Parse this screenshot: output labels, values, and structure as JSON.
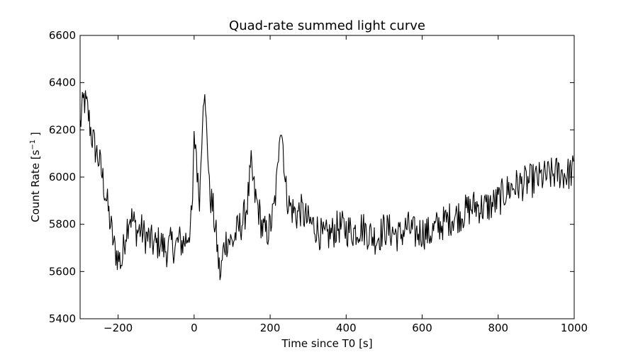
{
  "chart_data": {
    "type": "line",
    "title": "Quad-rate summed light curve",
    "xlabel": "Time since T0 [s]",
    "ylabel": "Count Rate [s",
    "ylabel_sup": "−1",
    "ylabel_suffix": " ]",
    "xlim": [
      -300,
      1000
    ],
    "ylim": [
      5400,
      6600
    ],
    "xticks": [
      -200,
      0,
      200,
      400,
      600,
      800,
      1000
    ],
    "xtick_labels": [
      "−200",
      "0",
      "200",
      "400",
      "600",
      "800",
      "1000"
    ],
    "yticks": [
      5400,
      5600,
      5800,
      6000,
      6200,
      6400,
      6600
    ],
    "ytick_labels": [
      "5400",
      "5600",
      "5800",
      "6000",
      "6200",
      "6400",
      "6600"
    ],
    "grid": false,
    "line_color": "#000000",
    "anchors": [
      [
        -300,
        6220
      ],
      [
        -290,
        6330
      ],
      [
        -280,
        6280
      ],
      [
        -270,
        6180
      ],
      [
        -260,
        6120
      ],
      [
        -250,
        6070
      ],
      [
        -240,
        5990
      ],
      [
        -230,
        5900
      ],
      [
        -220,
        5800
      ],
      [
        -210,
        5700
      ],
      [
        -200,
        5660
      ],
      [
        -190,
        5640
      ],
      [
        -180,
        5770
      ],
      [
        -170,
        5840
      ],
      [
        -160,
        5810
      ],
      [
        -150,
        5770
      ],
      [
        -140,
        5780
      ],
      [
        -130,
        5750
      ],
      [
        -120,
        5740
      ],
      [
        -110,
        5720
      ],
      [
        -100,
        5710
      ],
      [
        -90,
        5730
      ],
      [
        -80,
        5700
      ],
      [
        -70,
        5690
      ],
      [
        -60,
        5720
      ],
      [
        -50,
        5700
      ],
      [
        -40,
        5730
      ],
      [
        -30,
        5720
      ],
      [
        -20,
        5740
      ],
      [
        -10,
        5790
      ],
      [
        -5,
        5840
      ],
      [
        0,
        6150
      ],
      [
        5,
        6140
      ],
      [
        10,
        5960
      ],
      [
        15,
        5920
      ],
      [
        20,
        6180
      ],
      [
        25,
        6400
      ],
      [
        30,
        6250
      ],
      [
        35,
        6170
      ],
      [
        40,
        5940
      ],
      [
        50,
        5860
      ],
      [
        60,
        5720
      ],
      [
        65,
        5620
      ],
      [
        70,
        5580
      ],
      [
        75,
        5660
      ],
      [
        80,
        5720
      ],
      [
        90,
        5740
      ],
      [
        100,
        5720
      ],
      [
        110,
        5760
      ],
      [
        120,
        5790
      ],
      [
        130,
        5820
      ],
      [
        140,
        5890
      ],
      [
        150,
        6040
      ],
      [
        155,
        5980
      ],
      [
        160,
        5920
      ],
      [
        170,
        5860
      ],
      [
        180,
        5780
      ],
      [
        190,
        5760
      ],
      [
        200,
        5790
      ],
      [
        210,
        5860
      ],
      [
        220,
        6020
      ],
      [
        225,
        6240
      ],
      [
        230,
        6200
      ],
      [
        235,
        6120
      ],
      [
        240,
        5960
      ],
      [
        250,
        5880
      ],
      [
        260,
        5860
      ],
      [
        270,
        5840
      ],
      [
        280,
        5860
      ],
      [
        300,
        5810
      ],
      [
        320,
        5790
      ],
      [
        340,
        5740
      ],
      [
        360,
        5760
      ],
      [
        380,
        5790
      ],
      [
        400,
        5780
      ],
      [
        420,
        5770
      ],
      [
        440,
        5790
      ],
      [
        460,
        5760
      ],
      [
        480,
        5740
      ],
      [
        500,
        5780
      ],
      [
        520,
        5770
      ],
      [
        540,
        5750
      ],
      [
        560,
        5790
      ],
      [
        580,
        5760
      ],
      [
        600,
        5770
      ],
      [
        620,
        5760
      ],
      [
        640,
        5790
      ],
      [
        660,
        5810
      ],
      [
        680,
        5830
      ],
      [
        700,
        5840
      ],
      [
        720,
        5860
      ],
      [
        740,
        5880
      ],
      [
        760,
        5870
      ],
      [
        780,
        5880
      ],
      [
        800,
        5900
      ],
      [
        820,
        5940
      ],
      [
        840,
        5960
      ],
      [
        860,
        5970
      ],
      [
        880,
        5980
      ],
      [
        900,
        5990
      ],
      [
        920,
        6000
      ],
      [
        940,
        6010
      ],
      [
        960,
        6020
      ],
      [
        980,
        6010
      ],
      [
        1000,
        6030
      ]
    ]
  }
}
